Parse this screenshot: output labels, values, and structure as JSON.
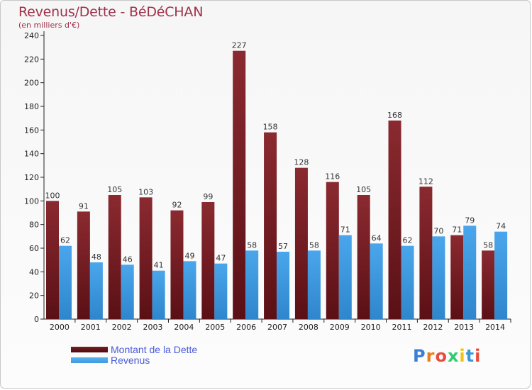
{
  "title": "Revenus/Dette - BéDéCHAN",
  "subtitle": "(en milliers d'€)",
  "legend": {
    "debt": "Montant de la Dette",
    "revenue": "Revenus"
  },
  "logo": {
    "letters": [
      "P",
      "r",
      "o",
      "x",
      "i",
      "t",
      "i"
    ],
    "colors": [
      "#3a7fd5",
      "#e67e22",
      "#e74c3c",
      "#2ecc71",
      "#f1c40f",
      "#3498db",
      "#e74c3c"
    ]
  },
  "colors": {
    "debt": "#7a1f24",
    "revenue": "#3f9ae0",
    "title": "#a0304a"
  },
  "chart_data": {
    "type": "bar",
    "title": "Revenus/Dette - BéDéCHAN",
    "ylabel": "(en milliers d'€)",
    "xlabel": "",
    "ylim": [
      0,
      240
    ],
    "yticks": [
      0,
      20,
      40,
      60,
      80,
      100,
      120,
      140,
      160,
      180,
      200,
      220,
      240
    ],
    "grid": false,
    "legend_position": "bottom-left",
    "categories": [
      "2000",
      "2001",
      "2002",
      "2003",
      "2004",
      "2005",
      "2006",
      "2007",
      "2008",
      "2009",
      "2010",
      "2011",
      "2012",
      "2013",
      "2014"
    ],
    "series": [
      {
        "name": "Montant de la Dette",
        "values": [
          100,
          91,
          105,
          103,
          92,
          99,
          227,
          158,
          128,
          116,
          105,
          168,
          112,
          71,
          58
        ]
      },
      {
        "name": "Revenus",
        "values": [
          62,
          48,
          46,
          41,
          49,
          47,
          58,
          57,
          58,
          71,
          64,
          62,
          70,
          79,
          74
        ]
      }
    ]
  }
}
